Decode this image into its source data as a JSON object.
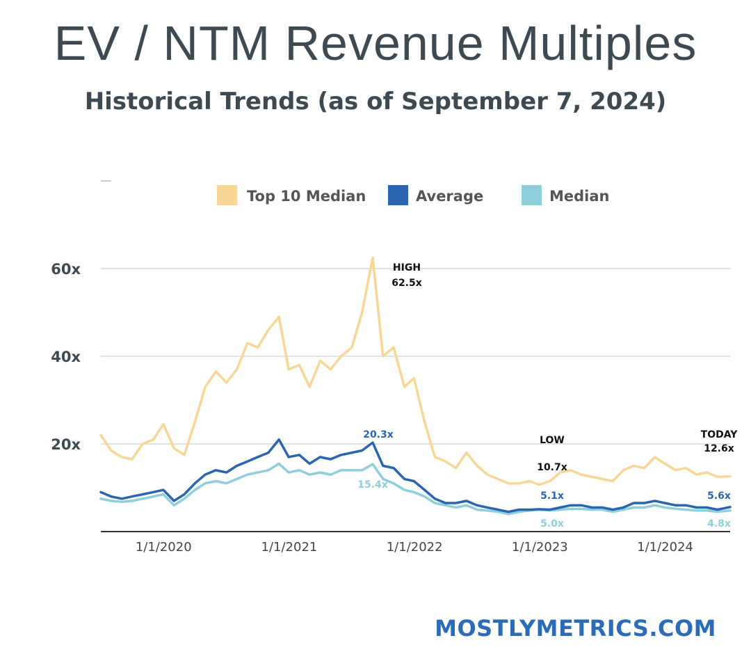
{
  "header": {
    "title": "EV / NTM Revenue Multiples",
    "subtitle": "Historical Trends (as of  September 7, 2024)"
  },
  "footer": {
    "brand": "MOSTLYMETRICS.COM"
  },
  "colors": {
    "top10": "#f8d796",
    "average": "#2a66b0",
    "median": "#8fcfdc",
    "text": "#3d4a52",
    "grid": "#d9d9d9"
  },
  "chart_data": {
    "type": "line",
    "title": "",
    "xlabel": "",
    "ylabel": "",
    "ylim": [
      0,
      60
    ],
    "yticks": [
      20,
      40,
      60
    ],
    "ytick_labels": [
      "20x",
      "40x",
      "60x"
    ],
    "x_range": [
      "2019-09-01",
      "2024-09-07"
    ],
    "xticks": [
      "2020-01-01",
      "2021-01-01",
      "2022-01-01",
      "2023-01-01",
      "2024-01-01"
    ],
    "xtick_labels": [
      "1/1/2020",
      "1/1/2021",
      "1/1/2022",
      "1/1/2023",
      "1/1/2024"
    ],
    "grid": true,
    "legend_position": "top",
    "series": [
      {
        "name": "Top 10 Median",
        "color": "#f8d796",
        "points": [
          [
            "2019-09-01",
            22
          ],
          [
            "2019-10-01",
            18.5
          ],
          [
            "2019-11-01",
            17
          ],
          [
            "2019-12-01",
            16.5
          ],
          [
            "2020-01-01",
            20
          ],
          [
            "2020-02-01",
            21
          ],
          [
            "2020-03-01",
            24.5
          ],
          [
            "2020-04-01",
            19
          ],
          [
            "2020-05-01",
            17.5
          ],
          [
            "2020-06-01",
            25
          ],
          [
            "2020-07-01",
            33
          ],
          [
            "2020-08-01",
            36.5
          ],
          [
            "2020-09-01",
            34
          ],
          [
            "2020-10-01",
            37
          ],
          [
            "2020-11-01",
            43
          ],
          [
            "2020-12-01",
            42
          ],
          [
            "2021-01-01",
            46
          ],
          [
            "2021-02-01",
            49
          ],
          [
            "2021-03-01",
            37
          ],
          [
            "2021-04-01",
            38
          ],
          [
            "2021-05-01",
            33
          ],
          [
            "2021-06-01",
            39
          ],
          [
            "2021-07-01",
            37
          ],
          [
            "2021-08-01",
            40
          ],
          [
            "2021-09-01",
            42
          ],
          [
            "2021-10-01",
            50
          ],
          [
            "2021-11-01",
            62.5
          ],
          [
            "2021-12-01",
            40
          ],
          [
            "2022-01-01",
            42
          ],
          [
            "2022-02-01",
            33
          ],
          [
            "2022-03-01",
            35
          ],
          [
            "2022-04-01",
            25
          ],
          [
            "2022-05-01",
            17
          ],
          [
            "2022-06-01",
            16
          ],
          [
            "2022-07-01",
            14.5
          ],
          [
            "2022-08-01",
            18
          ],
          [
            "2022-09-01",
            15
          ],
          [
            "2022-10-01",
            13
          ],
          [
            "2022-11-01",
            12
          ],
          [
            "2022-12-01",
            11
          ],
          [
            "2023-01-01",
            11
          ],
          [
            "2023-02-01",
            11.5
          ],
          [
            "2023-03-01",
            10.7
          ],
          [
            "2023-04-01",
            11.5
          ],
          [
            "2023-05-01",
            13.5
          ],
          [
            "2023-06-01",
            14
          ],
          [
            "2023-07-01",
            13
          ],
          [
            "2023-08-01",
            12.5
          ],
          [
            "2023-09-01",
            12
          ],
          [
            "2023-10-01",
            11.5
          ],
          [
            "2023-11-01",
            14
          ],
          [
            "2023-12-01",
            15
          ],
          [
            "2024-01-01",
            14.5
          ],
          [
            "2024-02-01",
            17
          ],
          [
            "2024-03-01",
            15.5
          ],
          [
            "2024-04-01",
            14
          ],
          [
            "2024-05-01",
            14.5
          ],
          [
            "2024-06-01",
            13
          ],
          [
            "2024-07-01",
            13.5
          ],
          [
            "2024-08-01",
            12.5
          ],
          [
            "2024-09-07",
            12.6
          ]
        ]
      },
      {
        "name": "Average",
        "color": "#2a66b0",
        "points": [
          [
            "2019-09-01",
            9
          ],
          [
            "2019-10-01",
            8
          ],
          [
            "2019-11-01",
            7.5
          ],
          [
            "2019-12-01",
            8
          ],
          [
            "2020-01-01",
            8.5
          ],
          [
            "2020-02-01",
            9
          ],
          [
            "2020-03-01",
            9.5
          ],
          [
            "2020-04-01",
            7
          ],
          [
            "2020-05-01",
            8.5
          ],
          [
            "2020-06-01",
            11
          ],
          [
            "2020-07-01",
            13
          ],
          [
            "2020-08-01",
            14
          ],
          [
            "2020-09-01",
            13.5
          ],
          [
            "2020-10-01",
            15
          ],
          [
            "2020-11-01",
            16
          ],
          [
            "2020-12-01",
            17
          ],
          [
            "2021-01-01",
            18
          ],
          [
            "2021-02-01",
            21
          ],
          [
            "2021-03-01",
            17
          ],
          [
            "2021-04-01",
            17.5
          ],
          [
            "2021-05-01",
            15.5
          ],
          [
            "2021-06-01",
            17
          ],
          [
            "2021-07-01",
            16.5
          ],
          [
            "2021-08-01",
            17.5
          ],
          [
            "2021-09-01",
            18
          ],
          [
            "2021-10-01",
            18.5
          ],
          [
            "2021-11-01",
            20.3
          ],
          [
            "2021-12-01",
            15
          ],
          [
            "2022-01-01",
            14.5
          ],
          [
            "2022-02-01",
            12
          ],
          [
            "2022-03-01",
            11.5
          ],
          [
            "2022-04-01",
            9.5
          ],
          [
            "2022-05-01",
            7.5
          ],
          [
            "2022-06-01",
            6.5
          ],
          [
            "2022-07-01",
            6.5
          ],
          [
            "2022-08-01",
            7
          ],
          [
            "2022-09-01",
            6
          ],
          [
            "2022-10-01",
            5.5
          ],
          [
            "2022-11-01",
            5
          ],
          [
            "2022-12-01",
            4.5
          ],
          [
            "2023-01-01",
            5
          ],
          [
            "2023-02-01",
            5
          ],
          [
            "2023-03-01",
            5.1
          ],
          [
            "2023-04-01",
            5
          ],
          [
            "2023-05-01",
            5.5
          ],
          [
            "2023-06-01",
            6
          ],
          [
            "2023-07-01",
            6
          ],
          [
            "2023-08-01",
            5.5
          ],
          [
            "2023-09-01",
            5.5
          ],
          [
            "2023-10-01",
            5
          ],
          [
            "2023-11-01",
            5.5
          ],
          [
            "2023-12-01",
            6.5
          ],
          [
            "2024-01-01",
            6.5
          ],
          [
            "2024-02-01",
            7
          ],
          [
            "2024-03-01",
            6.5
          ],
          [
            "2024-04-01",
            6
          ],
          [
            "2024-05-01",
            6
          ],
          [
            "2024-06-01",
            5.5
          ],
          [
            "2024-07-01",
            5.5
          ],
          [
            "2024-08-01",
            5
          ],
          [
            "2024-09-07",
            5.6
          ]
        ]
      },
      {
        "name": "Median",
        "color": "#8fcfdc",
        "points": [
          [
            "2019-09-01",
            7.5
          ],
          [
            "2019-10-01",
            7
          ],
          [
            "2019-11-01",
            6.8
          ],
          [
            "2019-12-01",
            7
          ],
          [
            "2020-01-01",
            7.5
          ],
          [
            "2020-02-01",
            8
          ],
          [
            "2020-03-01",
            8.5
          ],
          [
            "2020-04-01",
            6
          ],
          [
            "2020-05-01",
            7.5
          ],
          [
            "2020-06-01",
            9.5
          ],
          [
            "2020-07-01",
            11
          ],
          [
            "2020-08-01",
            11.5
          ],
          [
            "2020-09-01",
            11
          ],
          [
            "2020-10-01",
            12
          ],
          [
            "2020-11-01",
            13
          ],
          [
            "2020-12-01",
            13.5
          ],
          [
            "2021-01-01",
            14
          ],
          [
            "2021-02-01",
            15.5
          ],
          [
            "2021-03-01",
            13.5
          ],
          [
            "2021-04-01",
            14
          ],
          [
            "2021-05-01",
            13
          ],
          [
            "2021-06-01",
            13.5
          ],
          [
            "2021-07-01",
            13
          ],
          [
            "2021-08-01",
            14
          ],
          [
            "2021-09-01",
            14
          ],
          [
            "2021-10-01",
            14
          ],
          [
            "2021-11-01",
            15.4
          ],
          [
            "2021-12-01",
            12
          ],
          [
            "2022-01-01",
            11
          ],
          [
            "2022-02-01",
            9.5
          ],
          [
            "2022-03-01",
            9
          ],
          [
            "2022-04-01",
            8
          ],
          [
            "2022-05-01",
            6.5
          ],
          [
            "2022-06-01",
            6
          ],
          [
            "2022-07-01",
            5.5
          ],
          [
            "2022-08-01",
            6
          ],
          [
            "2022-09-01",
            5
          ],
          [
            "2022-10-01",
            4.8
          ],
          [
            "2022-11-01",
            4.5
          ],
          [
            "2022-12-01",
            4
          ],
          [
            "2023-01-01",
            4.5
          ],
          [
            "2023-02-01",
            4.8
          ],
          [
            "2023-03-01",
            5.0
          ],
          [
            "2023-04-01",
            4.8
          ],
          [
            "2023-05-01",
            5
          ],
          [
            "2023-06-01",
            5.2
          ],
          [
            "2023-07-01",
            5.2
          ],
          [
            "2023-08-01",
            5
          ],
          [
            "2023-09-01",
            5
          ],
          [
            "2023-10-01",
            4.5
          ],
          [
            "2023-11-01",
            5
          ],
          [
            "2023-12-01",
            5.5
          ],
          [
            "2024-01-01",
            5.5
          ],
          [
            "2024-02-01",
            6
          ],
          [
            "2024-03-01",
            5.5
          ],
          [
            "2024-04-01",
            5.2
          ],
          [
            "2024-05-01",
            5
          ],
          [
            "2024-06-01",
            4.8
          ],
          [
            "2024-07-01",
            4.8
          ],
          [
            "2024-08-01",
            4.5
          ],
          [
            "2024-09-07",
            4.8
          ]
        ]
      }
    ],
    "annotations": [
      {
        "name": "high",
        "lines": [
          "HIGH",
          "62.5x"
        ],
        "color": "#111111",
        "bold": true
      },
      {
        "name": "avg-peak",
        "lines": [
          "20.3x"
        ],
        "color": "#2a66b0",
        "bold": true
      },
      {
        "name": "median-peak",
        "lines": [
          "15.4x"
        ],
        "color": "#8fcfdc",
        "bold": true
      },
      {
        "name": "low-label",
        "lines": [
          "LOW"
        ],
        "color": "#111111",
        "bold": true
      },
      {
        "name": "low-top10",
        "lines": [
          "10.7x"
        ],
        "color": "#111111",
        "bold": true
      },
      {
        "name": "low-average",
        "lines": [
          "5.1x"
        ],
        "color": "#2a66b0",
        "bold": true
      },
      {
        "name": "low-median",
        "lines": [
          "5.0x"
        ],
        "color": "#8fcfdc",
        "bold": true
      },
      {
        "name": "today",
        "lines": [
          "TODAY",
          "12.6x"
        ],
        "color": "#111111",
        "bold": true
      },
      {
        "name": "today-average",
        "lines": [
          "5.6x"
        ],
        "color": "#2a66b0",
        "bold": true
      },
      {
        "name": "today-median",
        "lines": [
          "4.8x"
        ],
        "color": "#8fcfdc",
        "bold": true
      }
    ]
  }
}
